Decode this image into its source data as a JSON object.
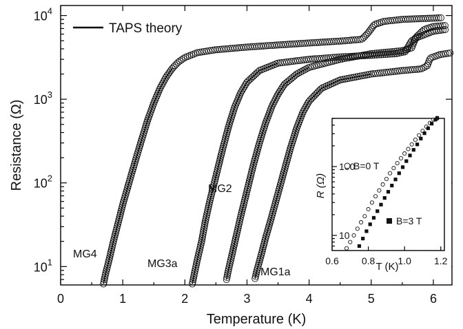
{
  "chart_data": [
    {
      "type": "scatter",
      "xlabel": "Temperature (K)",
      "ylabel": "Resistance (Ω)",
      "xlim": [
        0,
        6.3
      ],
      "ylim_log": [
        0.78,
        4.12
      ],
      "yscale": "log",
      "xticks": [
        "0",
        "1",
        "2",
        "3",
        "4",
        "5",
        "6"
      ],
      "yticks": [
        {
          "base": "10",
          "exp": "1",
          "log": 1
        },
        {
          "base": "10",
          "exp": "2",
          "log": 2
        },
        {
          "base": "10",
          "exp": "3",
          "log": 3
        },
        {
          "base": "10",
          "exp": "4",
          "log": 4
        }
      ],
      "legend": {
        "label": "TAPS theory",
        "position": "top-left"
      },
      "series": [
        {
          "name": "MG4",
          "points": [
            [
              0.69,
              6.2
            ],
            [
              0.72,
              8
            ],
            [
              0.78,
              12
            ],
            [
              0.85,
              20
            ],
            [
              0.92,
              32
            ],
            [
              1.0,
              55
            ],
            [
              1.1,
              100
            ],
            [
              1.2,
              180
            ],
            [
              1.3,
              320
            ],
            [
              1.4,
              560
            ],
            [
              1.5,
              900
            ],
            [
              1.6,
              1350
            ],
            [
              1.7,
              1850
            ],
            [
              1.8,
              2350
            ],
            [
              1.9,
              2800
            ],
            [
              2.0,
              3150
            ],
            [
              2.2,
              3600
            ],
            [
              2.5,
              3900
            ],
            [
              3.0,
              4200
            ],
            [
              3.5,
              4450
            ],
            [
              4.0,
              4700
            ],
            [
              4.5,
              4950
            ],
            [
              4.85,
              5200
            ],
            [
              4.95,
              6200
            ],
            [
              5.05,
              7800
            ],
            [
              5.2,
              8500
            ],
            [
              5.5,
              9000
            ],
            [
              6.0,
              9300
            ],
            [
              6.15,
              9400
            ]
          ]
        },
        {
          "name": "MG3a",
          "points": [
            [
              2.12,
              6.2
            ],
            [
              2.15,
              8
            ],
            [
              2.2,
              12
            ],
            [
              2.27,
              20
            ],
            [
              2.33,
              35
            ],
            [
              2.4,
              60
            ],
            [
              2.5,
              120
            ],
            [
              2.6,
              240
            ],
            [
              2.7,
              460
            ],
            [
              2.8,
              800
            ],
            [
              2.9,
              1200
            ],
            [
              3.0,
              1600
            ],
            [
              3.2,
              2200
            ],
            [
              3.5,
              2700
            ],
            [
              4.0,
              3000
            ],
            [
              4.5,
              3200
            ],
            [
              5.0,
              3350
            ],
            [
              5.4,
              3500
            ],
            [
              5.55,
              3700
            ],
            [
              5.65,
              5000
            ],
            [
              5.75,
              5500
            ],
            [
              6.0,
              6500
            ],
            [
              6.2,
              6800
            ]
          ]
        },
        {
          "name": "MG2",
          "points": [
            [
              2.67,
              7
            ],
            [
              2.7,
              9
            ],
            [
              2.75,
              13
            ],
            [
              2.82,
              22
            ],
            [
              2.9,
              40
            ],
            [
              3.0,
              80
            ],
            [
              3.1,
              160
            ],
            [
              3.2,
              300
            ],
            [
              3.3,
              520
            ],
            [
              3.4,
              820
            ],
            [
              3.5,
              1150
            ],
            [
              3.6,
              1500
            ],
            [
              3.8,
              2000
            ],
            [
              4.0,
              2400
            ],
            [
              4.5,
              3000
            ],
            [
              5.0,
              3500
            ],
            [
              5.5,
              3800
            ],
            [
              5.65,
              4100
            ],
            [
              5.72,
              5500
            ],
            [
              5.85,
              6800
            ],
            [
              6.0,
              7400
            ],
            [
              6.2,
              7600
            ]
          ]
        },
        {
          "name": "MG1a",
          "points": [
            [
              3.13,
              7.2
            ],
            [
              3.16,
              9
            ],
            [
              3.22,
              13
            ],
            [
              3.3,
              22
            ],
            [
              3.4,
              40
            ],
            [
              3.5,
              75
            ],
            [
              3.6,
              140
            ],
            [
              3.7,
              260
            ],
            [
              3.8,
              450
            ],
            [
              3.9,
              700
            ],
            [
              4.0,
              950
            ],
            [
              4.2,
              1350
            ],
            [
              4.5,
              1700
            ],
            [
              5.0,
              2000
            ],
            [
              5.5,
              2200
            ],
            [
              5.8,
              2300
            ],
            [
              5.9,
              2500
            ],
            [
              5.95,
              3100
            ],
            [
              6.1,
              3400
            ],
            [
              6.3,
              3600
            ]
          ]
        }
      ]
    },
    {
      "type": "scatter",
      "xlabel": "T (K)",
      "ylabel": "R (Ω)",
      "xlim": [
        0.6,
        1.22
      ],
      "ylim_log": [
        0.78,
        2.7
      ],
      "yscale": "log",
      "xticks": [
        "0.6",
        "0.8",
        "1.0",
        "1.2"
      ],
      "yticks": [
        {
          "label": "10",
          "log": 1
        },
        {
          "label": "100",
          "log": 2
        }
      ],
      "series": [
        {
          "name": "B=0 T",
          "marker": "open-circle",
          "points": [
            [
              0.68,
              6.5
            ],
            [
              0.7,
              8
            ],
            [
              0.72,
              10
            ],
            [
              0.74,
              12.5
            ],
            [
              0.76,
              15.5
            ],
            [
              0.78,
              19
            ],
            [
              0.8,
              24
            ],
            [
              0.82,
              30
            ],
            [
              0.84,
              37
            ],
            [
              0.86,
              45
            ],
            [
              0.88,
              55
            ],
            [
              0.9,
              66
            ],
            [
              0.92,
              80
            ],
            [
              0.94,
              95
            ],
            [
              0.96,
              112
            ],
            [
              0.98,
              132
            ],
            [
              1.0,
              155
            ],
            [
              1.02,
              180
            ],
            [
              1.04,
              210
            ],
            [
              1.06,
              245
            ],
            [
              1.08,
              285
            ],
            [
              1.1,
              330
            ],
            [
              1.12,
              380
            ],
            [
              1.14,
              430
            ],
            [
              1.16,
              480
            ],
            [
              1.18,
              500
            ]
          ]
        },
        {
          "name": "B=3 T",
          "marker": "filled-square",
          "points": [
            [
              0.75,
              7
            ],
            [
              0.77,
              9
            ],
            [
              0.79,
              11.5
            ],
            [
              0.81,
              14.5
            ],
            [
              0.83,
              18
            ],
            [
              0.85,
              22.5
            ],
            [
              0.87,
              28
            ],
            [
              0.89,
              35
            ],
            [
              0.91,
              43
            ],
            [
              0.93,
              53
            ],
            [
              0.95,
              65
            ],
            [
              0.97,
              80
            ],
            [
              0.99,
              98
            ],
            [
              1.01,
              120
            ],
            [
              1.03,
              145
            ],
            [
              1.05,
              175
            ],
            [
              1.07,
              210
            ],
            [
              1.09,
              255
            ],
            [
              1.11,
              305
            ],
            [
              1.13,
              360
            ],
            [
              1.15,
              420
            ],
            [
              1.17,
              480
            ],
            [
              1.18,
              510
            ]
          ]
        }
      ]
    }
  ]
}
